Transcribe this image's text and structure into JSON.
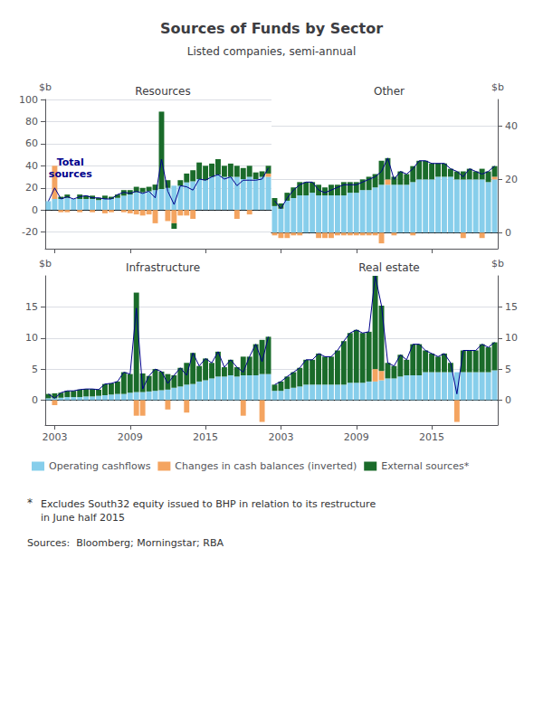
{
  "title": "Sources of Funds by Sector",
  "subtitle": "Listed companies, semi-annual",
  "legend": "lower left",
  "annotations": [
    {
      "text": "*"
    },
    {
      "text": "Excludes South32 equity issued to BHP in relation to its restructure\nin June half 2015"
    },
    {
      "text": "Sources:  Bloomberg; Morningstar; RBA"
    }
  ],
  "chart_data": [
    {
      "type": "bar",
      "title": "Resources",
      "ylabel": "$b",
      "stacked": true,
      "grid": true,
      "tick_labels": "y",
      "categories": [
        null,
        "2003",
        null,
        null,
        null,
        null,
        null,
        null,
        null,
        null,
        null,
        null,
        null,
        "2009",
        null,
        null,
        null,
        null,
        null,
        null,
        null,
        null,
        null,
        null,
        null,
        "2015",
        null,
        null,
        null,
        null,
        null,
        null,
        null,
        null,
        null,
        null
      ],
      "ylim": [
        -35,
        100
      ],
      "yticks": [
        -20,
        0,
        20,
        40,
        60,
        80,
        100
      ],
      "annotations": [
        {
          "text": "Total\nsources",
          "x": 3.5,
          "y": 38
        }
      ],
      "series": [
        {
          "name": "Operating cashflows",
          "color": "#87CEEB",
          "values": [
            8,
            10,
            10,
            11,
            10,
            10,
            10,
            10,
            9,
            10,
            10,
            11,
            13,
            14,
            16,
            16,
            17,
            18,
            19,
            20,
            22,
            22,
            25,
            26,
            28,
            27,
            30,
            32,
            30,
            30,
            30,
            28,
            30,
            28,
            30,
            30
          ]
        },
        {
          "name": "Changes in cash balances (inverted)",
          "color": "#F4A460",
          "values": [
            0,
            30,
            -2,
            -2,
            0,
            -2,
            0,
            -2,
            0,
            -3,
            -2,
            0,
            -2,
            -3,
            -4,
            -5,
            -4,
            -12,
            0,
            -10,
            -12,
            -5,
            -5,
            -8,
            0,
            0,
            0,
            0,
            0,
            0,
            -8,
            0,
            -4,
            0,
            0,
            3
          ]
        },
        {
          "name": "External sources*",
          "color": "#1A6B2A",
          "values": [
            0,
            0,
            2,
            3,
            0,
            4,
            3,
            3,
            2,
            3,
            2,
            3,
            5,
            4,
            5,
            4,
            4,
            5,
            70,
            7,
            -5,
            5,
            8,
            10,
            15,
            13,
            12,
            14,
            10,
            12,
            10,
            10,
            10,
            6,
            5,
            7
          ]
        },
        {
          "type": "line",
          "color": "#00008B",
          "values": [
            8,
            20,
            10,
            12,
            10,
            12,
            13,
            11,
            11,
            10,
            10,
            14,
            16,
            15,
            17,
            15,
            17,
            11,
            46,
            17,
            5,
            22,
            21,
            18,
            28,
            27,
            30,
            32,
            28,
            30,
            22,
            27,
            27,
            27,
            28,
            38
          ]
        }
      ]
    },
    {
      "type": "bar",
      "title": "Other",
      "ylabel": "$b",
      "stacked": true,
      "grid": true,
      "tick_labels": "y",
      "categories": [
        null,
        "2003",
        null,
        null,
        null,
        null,
        null,
        null,
        null,
        null,
        null,
        null,
        null,
        "2009",
        null,
        null,
        null,
        null,
        null,
        null,
        null,
        null,
        null,
        null,
        null,
        "2015",
        null,
        null,
        null,
        null,
        null,
        null,
        null,
        null,
        null,
        null
      ],
      "ylim": [
        -6,
        50
      ],
      "yticks": [
        0,
        20,
        40
      ],
      "series": [
        {
          "name": "Operating cashflows",
          "color": "#87CEEB",
          "values": [
            10,
            9,
            12,
            13,
            14,
            14,
            15,
            14,
            14,
            14,
            14,
            14,
            15,
            15,
            16,
            16,
            17,
            18,
            18,
            18,
            18,
            18,
            19,
            20,
            20,
            20,
            21,
            21,
            21,
            20,
            20,
            20,
            20,
            20,
            19,
            20
          ]
        },
        {
          "name": "Changes in cash balances (inverted)",
          "color": "#F4A460",
          "values": [
            -1,
            -2,
            -2,
            -1,
            -1,
            0,
            0,
            -2,
            -2,
            -2,
            -1,
            -1,
            -1,
            -1,
            -1,
            -1,
            -1,
            -4,
            2,
            -1,
            0,
            0,
            -1,
            0,
            0,
            0,
            0,
            0,
            0,
            0,
            -2,
            0,
            0,
            -2,
            0,
            1
          ]
        },
        {
          "name": "External sources*",
          "color": "#1A6B2A",
          "values": [
            3,
            2,
            3,
            4,
            5,
            5,
            4,
            4,
            3,
            4,
            4,
            5,
            4,
            4,
            4,
            5,
            5,
            9,
            8,
            3,
            5,
            4,
            6,
            7,
            7,
            6,
            5,
            5,
            3,
            3,
            3,
            4,
            3,
            4,
            4,
            4
          ]
        },
        {
          "type": "line",
          "color": "#00008B",
          "values": [
            12,
            9,
            13,
            16,
            18,
            19,
            19,
            16,
            15,
            16,
            17,
            18,
            18,
            18,
            19,
            20,
            21,
            23,
            28,
            20,
            23,
            22,
            24,
            27,
            27,
            26,
            26,
            26,
            24,
            23,
            21,
            24,
            23,
            22,
            23,
            25
          ]
        }
      ]
    },
    {
      "type": "bar",
      "title": "Infrastructure",
      "ylabel": "$b",
      "stacked": true,
      "grid": true,
      "categories": [
        null,
        "2003",
        null,
        null,
        null,
        null,
        null,
        null,
        null,
        null,
        null,
        null,
        null,
        "2009",
        null,
        null,
        null,
        null,
        null,
        null,
        null,
        null,
        null,
        null,
        null,
        "2015",
        null,
        null,
        null,
        null,
        null,
        null,
        null,
        null,
        null,
        null
      ],
      "ylim": [
        -4,
        20
      ],
      "yticks": [
        0,
        5,
        10,
        15
      ],
      "series": [
        {
          "name": "Operating cashflows",
          "color": "#87CEEB",
          "values": [
            0.3,
            0.3,
            0.4,
            0.5,
            0.5,
            0.5,
            0.6,
            0.6,
            0.7,
            0.8,
            0.9,
            1.0,
            1.0,
            1.2,
            1.3,
            1.3,
            1.4,
            1.5,
            1.6,
            1.7,
            2.0,
            2.2,
            2.5,
            2.6,
            3.0,
            3.2,
            3.5,
            3.8,
            3.8,
            4.0,
            3.8,
            4.0,
            4.0,
            4.0,
            4.2,
            4.2
          ]
        },
        {
          "name": "Changes in cash balances (inverted)",
          "color": "#F4A460",
          "values": [
            0,
            -0.8,
            0,
            0,
            0,
            0,
            0,
            0,
            0,
            0,
            0,
            0,
            0,
            0,
            -2.5,
            -2.5,
            0,
            0,
            0,
            -1.5,
            0,
            0,
            -2.0,
            0,
            0,
            0,
            0,
            0,
            0,
            0,
            0,
            -2.5,
            0,
            0,
            -3.5,
            0
          ]
        },
        {
          "name": "External sources*",
          "color": "#1A6B2A",
          "values": [
            0.7,
            0.8,
            0.8,
            1.0,
            1.0,
            1.2,
            1.2,
            1.2,
            1.0,
            1.8,
            1.8,
            2.0,
            3.5,
            3.0,
            16.0,
            3.0,
            2.5,
            3.5,
            3.0,
            2.5,
            2.0,
            3.0,
            3.5,
            5.0,
            2.5,
            3.5,
            2.5,
            4.0,
            1.5,
            2.5,
            1.5,
            3.0,
            3.0,
            5.0,
            5.5,
            6.0
          ]
        },
        {
          "type": "line",
          "color": "#00008B",
          "values": [
            1.0,
            0.3,
            1.2,
            1.5,
            1.5,
            1.7,
            1.8,
            1.8,
            1.7,
            2.6,
            2.7,
            3.0,
            4.5,
            4.2,
            14.8,
            1.8,
            3.9,
            5.0,
            4.6,
            2.7,
            4.0,
            5.2,
            4.0,
            7.6,
            5.5,
            6.7,
            6.0,
            7.8,
            5.3,
            6.5,
            5.3,
            4.5,
            7.0,
            9.0,
            6.2,
            10.2
          ]
        }
      ]
    },
    {
      "type": "bar",
      "title": "Real estate",
      "ylabel": "$b",
      "stacked": true,
      "grid": true,
      "categories": [
        null,
        "2003",
        null,
        null,
        null,
        null,
        null,
        null,
        null,
        null,
        null,
        null,
        null,
        "2009",
        null,
        null,
        null,
        null,
        null,
        null,
        null,
        null,
        null,
        null,
        null,
        "2015",
        null,
        null,
        null,
        null,
        null,
        null,
        null,
        null,
        null,
        null
      ],
      "ylim": [
        -4,
        20
      ],
      "yticks": [
        0,
        5,
        10,
        15
      ],
      "series": [
        {
          "name": "Operating cashflows",
          "color": "#87CEEB",
          "values": [
            1.5,
            1.5,
            1.8,
            2.0,
            2.2,
            2.5,
            2.5,
            2.5,
            2.5,
            2.5,
            2.5,
            2.5,
            2.8,
            2.8,
            2.8,
            3.0,
            3.0,
            3.2,
            3.5,
            3.5,
            3.8,
            4.0,
            4.0,
            4.0,
            4.5,
            4.5,
            4.5,
            4.5,
            4.5,
            4.5,
            4.5,
            4.5,
            4.5,
            4.5,
            4.5,
            4.8
          ]
        },
        {
          "name": "Changes in cash balances (inverted)",
          "color": "#F4A460",
          "values": [
            0,
            0,
            0,
            0,
            0,
            0,
            0,
            0,
            0,
            0,
            0,
            0,
            0,
            0,
            0,
            0,
            2.0,
            1.5,
            0,
            0,
            0,
            0,
            0,
            0,
            0,
            0,
            0,
            0,
            0,
            -3.5,
            0,
            0,
            0,
            0,
            0,
            0
          ]
        },
        {
          "name": "External sources*",
          "color": "#1A6B2A",
          "values": [
            1.0,
            1.5,
            2.0,
            2.5,
            3.0,
            4.0,
            4.0,
            5.0,
            4.5,
            4.5,
            5.5,
            7.0,
            8.0,
            8.5,
            8.0,
            8.0,
            15.0,
            10.5,
            2.5,
            2.0,
            3.5,
            2.5,
            5.0,
            5.0,
            3.5,
            3.0,
            2.5,
            3.0,
            1.5,
            0,
            3.5,
            3.5,
            3.5,
            4.5,
            4.0,
            4.5
          ]
        },
        {
          "type": "line",
          "color": "#00008B",
          "values": [
            2.5,
            3.0,
            3.8,
            4.5,
            5.2,
            6.5,
            6.5,
            7.5,
            7.0,
            7.0,
            8.0,
            9.5,
            10.8,
            11.3,
            10.8,
            11.0,
            20.0,
            15.2,
            6.0,
            5.5,
            7.3,
            6.5,
            9.0,
            9.0,
            8.0,
            7.5,
            7.0,
            7.5,
            6.0,
            1.0,
            8.0,
            8.0,
            8.0,
            9.0,
            8.5,
            9.3
          ]
        }
      ]
    }
  ]
}
